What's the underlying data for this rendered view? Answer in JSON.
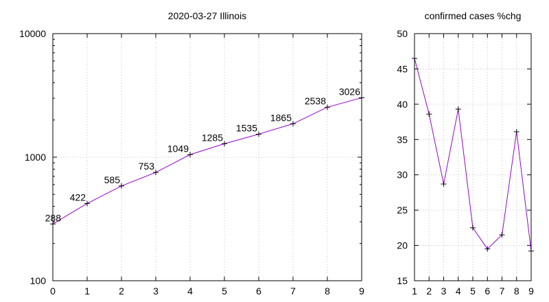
{
  "chart_data": [
    {
      "type": "line",
      "title": "2020-03-27 Illinois",
      "xlabel": "",
      "ylabel": "",
      "log_y": true,
      "xlim": [
        0,
        9
      ],
      "ylim": [
        100,
        10000
      ],
      "x_ticks": [
        0,
        1,
        2,
        3,
        4,
        5,
        6,
        7,
        8,
        9
      ],
      "y_ticks": [
        100,
        1000,
        10000
      ],
      "grid": true,
      "color": "#9400d3",
      "series": [
        {
          "x": [
            0,
            1,
            2,
            3,
            4,
            5,
            6,
            7,
            8,
            9
          ],
          "values": [
            288,
            422,
            585,
            753,
            1049,
            1285,
            1535,
            1865,
            2538,
            3026
          ]
        }
      ]
    },
    {
      "type": "line",
      "title": "confirmed cases %chg",
      "xlabel": "",
      "ylabel": "",
      "xlim": [
        1,
        9
      ],
      "ylim": [
        15,
        50
      ],
      "x_ticks": [
        1,
        2,
        3,
        4,
        5,
        6,
        7,
        8,
        9
      ],
      "y_ticks": [
        15,
        20,
        25,
        30,
        35,
        40,
        45,
        50
      ],
      "grid": true,
      "color": "#9400d3",
      "series": [
        {
          "x": [
            1,
            2,
            3,
            4,
            5,
            6,
            7,
            8,
            9
          ],
          "values": [
            46.5,
            38.6,
            28.7,
            39.3,
            22.5,
            19.5,
            21.5,
            36.1,
            19.2
          ]
        }
      ]
    }
  ]
}
